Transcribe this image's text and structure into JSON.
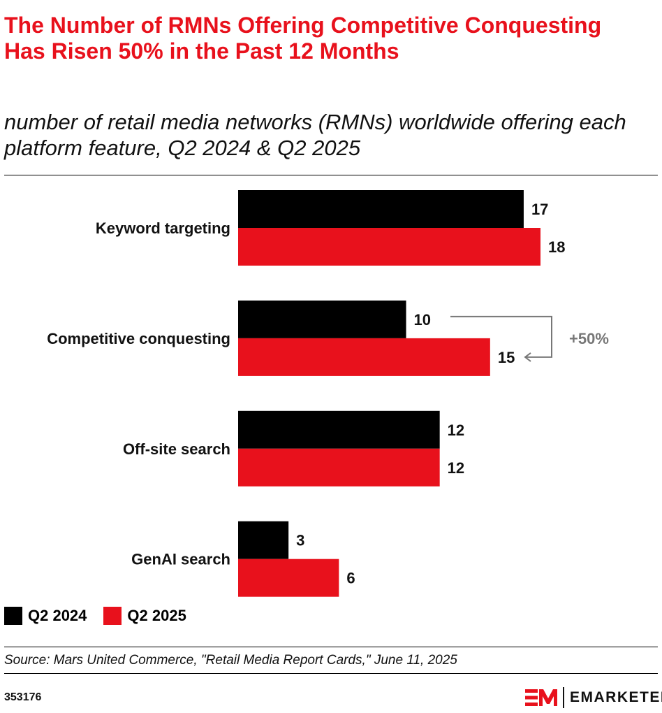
{
  "title": "The Number of RMNs Offering Competitive Conquesting Has Risen 50% in the Past 12 Months",
  "subtitle": "number of retail media networks (RMNs) worldwide offering each platform feature, Q2 2024 & Q2 2025",
  "chart_data": {
    "type": "bar",
    "orientation": "horizontal",
    "categories": [
      "Keyword targeting",
      "Competitive conquesting",
      "Off-site search",
      "GenAI search"
    ],
    "series": [
      {
        "name": "Q2 2024",
        "color": "#000000",
        "values": [
          17,
          10,
          12,
          3
        ]
      },
      {
        "name": "Q2 2025",
        "color": "#e8111c",
        "values": [
          18,
          15,
          12,
          6
        ]
      }
    ],
    "annotation": {
      "text": "+50%",
      "category": "Competitive conquesting",
      "color": "#777777"
    },
    "xlim": [
      0,
      18
    ],
    "grid": false,
    "legend": "bottom-left"
  },
  "source": "Source: Mars United Commerce, \"Retail Media Report Cards,\" June 11, 2025",
  "chart_id": "353176",
  "logo": {
    "mark": "EM",
    "brand": "EMARKETER",
    "color": "#e8111c"
  }
}
